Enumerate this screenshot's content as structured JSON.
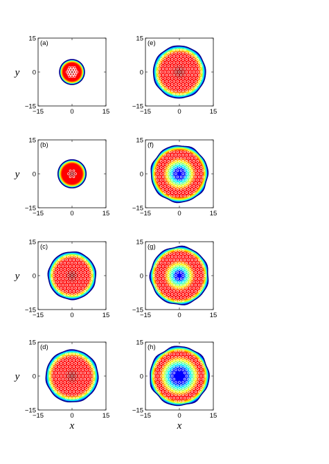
{
  "chart_data": [
    {
      "type": "heatmap",
      "panel_label": "(a)",
      "xlabel": "",
      "ylabel": "y",
      "xlim": [
        -15,
        15
      ],
      "ylim": [
        -15,
        15
      ],
      "xticks": [
        "-15",
        "0",
        "15"
      ],
      "yticks": [
        "15",
        "0",
        "-15"
      ],
      "cloud": {
        "cx": 0,
        "cy": 0,
        "radius": 5.5,
        "hole_radius": 0,
        "roughness": 0
      },
      "vortex_lattice_spacing": 1.1,
      "max_vortex_radius": 2.5
    },
    {
      "type": "heatmap",
      "panel_label": "(e)",
      "xlabel": "",
      "ylabel": "",
      "xlim": [
        -15,
        15
      ],
      "ylim": [
        -15,
        15
      ],
      "xticks": [
        "-15",
        "0",
        "15"
      ],
      "yticks": [
        "15",
        "0",
        "-15"
      ],
      "cloud": {
        "cx": 0,
        "cy": 0,
        "radius": 11.5,
        "hole_radius": 0,
        "roughness": 0.3
      },
      "vortex_lattice_spacing": 1.6,
      "max_vortex_radius": 10.0
    },
    {
      "type": "heatmap",
      "panel_label": "(b)",
      "xlabel": "",
      "ylabel": "y",
      "xlim": [
        -15,
        15
      ],
      "ylim": [
        -15,
        15
      ],
      "xticks": [
        "-15",
        "0",
        "15"
      ],
      "yticks": [
        "15",
        "0",
        "-15"
      ],
      "cloud": {
        "cx": 0,
        "cy": 0,
        "radius": 6.2,
        "hole_radius": 0,
        "roughness": 0
      },
      "vortex_lattice_spacing": 1.5,
      "max_vortex_radius": 2.2
    },
    {
      "type": "heatmap",
      "panel_label": "(f)",
      "xlabel": "",
      "ylabel": "",
      "xlim": [
        -15,
        15
      ],
      "ylim": [
        -15,
        15
      ],
      "xticks": [
        "-15",
        "0",
        "15"
      ],
      "yticks": [
        "15",
        "0",
        "-15"
      ],
      "cloud": {
        "cx": 0,
        "cy": 0,
        "radius": 12.5,
        "hole_radius": 3.0,
        "roughness": 0.5
      },
      "vortex_lattice_spacing": 1.6,
      "max_vortex_radius": 11.0
    },
    {
      "type": "heatmap",
      "panel_label": "(c)",
      "xlabel": "",
      "ylabel": "y",
      "xlim": [
        -15,
        15
      ],
      "ylim": [
        -15,
        15
      ],
      "xticks": [
        "-15",
        "0",
        "15"
      ],
      "yticks": [
        "15",
        "0",
        "-15"
      ],
      "cloud": {
        "cx": 0,
        "cy": 0,
        "radius": 10.5,
        "hole_radius": 0,
        "roughness": 0.3
      },
      "vortex_lattice_spacing": 1.6,
      "max_vortex_radius": 9.2
    },
    {
      "type": "heatmap",
      "panel_label": "(g)",
      "xlabel": "",
      "ylabel": "",
      "xlim": [
        -15,
        15
      ],
      "ylim": [
        -15,
        15
      ],
      "xticks": [
        "-15",
        "0",
        "15"
      ],
      "yticks": [
        "15",
        "0",
        "-15"
      ],
      "cloud": {
        "cx": 0,
        "cy": 0,
        "radius": 12.8,
        "hole_radius": 2.5,
        "roughness": 0.5
      },
      "vortex_lattice_spacing": 1.6,
      "max_vortex_radius": 11.3
    },
    {
      "type": "heatmap",
      "panel_label": "(d)",
      "xlabel": "x",
      "ylabel": "y",
      "xlim": [
        -15,
        15
      ],
      "ylim": [
        -15,
        15
      ],
      "xticks": [
        "-15",
        "0",
        "15"
      ],
      "yticks": [
        "15",
        "0",
        "-15"
      ],
      "cloud": {
        "cx": 0,
        "cy": 0,
        "radius": 11.5,
        "hole_radius": 0,
        "roughness": 0.3
      },
      "vortex_lattice_spacing": 1.6,
      "max_vortex_radius": 10.0
    },
    {
      "type": "heatmap",
      "panel_label": "(h)",
      "xlabel": "x",
      "ylabel": "",
      "xlim": [
        -15,
        15
      ],
      "ylim": [
        -15,
        15
      ],
      "xticks": [
        "-15",
        "0",
        "15"
      ],
      "yticks": [
        "15",
        "0",
        "-15"
      ],
      "cloud": {
        "cx": 0,
        "cy": 0,
        "radius": 13.0,
        "hole_radius": 4.5,
        "roughness": 0.6
      },
      "vortex_lattice_spacing": 1.6,
      "max_vortex_radius": 11.5
    }
  ],
  "colors": {
    "background": "#ffffff",
    "axes": "#000000",
    "vortex_marker": "#ffffff",
    "colormap": [
      "#00008f",
      "#0000ff",
      "#0080ff",
      "#00ffff",
      "#80ff80",
      "#ffff00",
      "#ff8000",
      "#ff0000",
      "#800000"
    ]
  }
}
